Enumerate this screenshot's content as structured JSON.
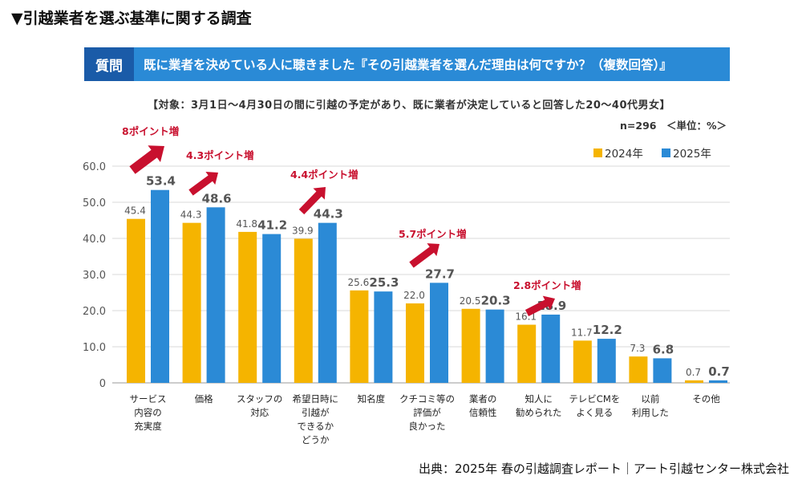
{
  "page_title": "▼引越業者を選ぶ基準に関する調査",
  "question": {
    "badge": "質問",
    "text": "既に業者を決めている人に聴きました『その引越業者を選んだ理由は何ですか？（複数回答）』"
  },
  "target": "【対象：3月1日～4月30日の間に引越の予定があり、既に業者が決定していると回答した20～40代男女】",
  "sample_unit": "n=296　＜単位：%＞",
  "source": "出典：2025年 春の引越調査レポート｜アート引越センター株式会社",
  "colors": {
    "y2024": "#f5b400",
    "y2025": "#2b8ad6",
    "annotation": "#c8102e",
    "banner": "#2a8ad6",
    "badge": "#1a5ba8"
  },
  "chart_data": {
    "type": "bar",
    "categories": [
      [
        "サービス",
        "内容の",
        "充実度"
      ],
      [
        "価格"
      ],
      [
        "スタッフの",
        "対応"
      ],
      [
        "希望日時に",
        "引越が",
        "できるか",
        "どうか"
      ],
      [
        "知名度"
      ],
      [
        "クチコミ等の",
        "評価が",
        "良かった"
      ],
      [
        "業者の",
        "信頼性"
      ],
      [
        "知人に",
        "勧められた"
      ],
      [
        "テレビCMを",
        "よく見る"
      ],
      [
        "以前",
        "利用した"
      ],
      [
        "その他"
      ]
    ],
    "series": [
      {
        "name": "2024年",
        "values": [
          45.4,
          44.3,
          41.8,
          39.9,
          25.6,
          22.0,
          20.5,
          16.1,
          11.7,
          7.3,
          0.7
        ],
        "color": "#f5b400"
      },
      {
        "name": "2025年",
        "values": [
          53.4,
          48.6,
          41.2,
          44.3,
          25.3,
          27.7,
          20.3,
          18.9,
          12.2,
          6.8,
          0.7
        ],
        "color": "#2b8ad6"
      }
    ],
    "yticks": [
      "0",
      "10.0",
      "20.0",
      "30.0",
      "40.0",
      "50.0",
      "60.0"
    ],
    "ylim": [
      0,
      60
    ],
    "grid": true,
    "legend": "top-right",
    "annotations": [
      {
        "category": 0,
        "text": "8ポイント増"
      },
      {
        "category": 1,
        "text": "4.3ポイント増"
      },
      {
        "category": 3,
        "text": "4.4ポイント増"
      },
      {
        "category": 5,
        "text": "5.7ポイント増"
      },
      {
        "category": 7,
        "text": "2.8ポイント増"
      }
    ]
  }
}
